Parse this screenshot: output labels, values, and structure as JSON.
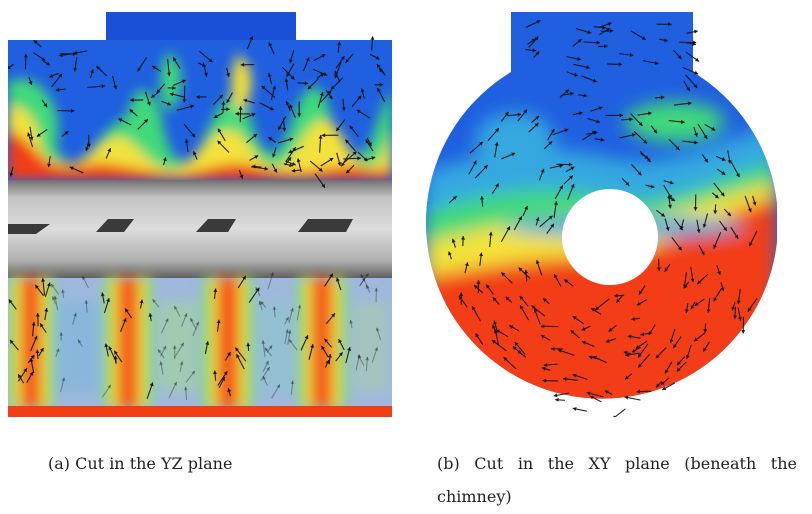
{
  "figure": {
    "panel_a": {
      "label": "(a)",
      "caption": "Cut in the YZ plane"
    },
    "panel_b": {
      "label": "(b)",
      "caption_line1_words": [
        "Cut",
        "in",
        "the",
        "XY",
        "plane",
        "(beneath",
        "the"
      ],
      "caption_line2": "chimney)"
    },
    "colors": {
      "cold": "#1a4fd8",
      "cool": "#34a8e0",
      "mid": "#3fd97a",
      "warm": "#f3e23a",
      "hot": "#f23c12",
      "pipe_light": "#d7d7d7",
      "pipe_dark": "#8a8a8a",
      "arrow": "#111111"
    }
  }
}
